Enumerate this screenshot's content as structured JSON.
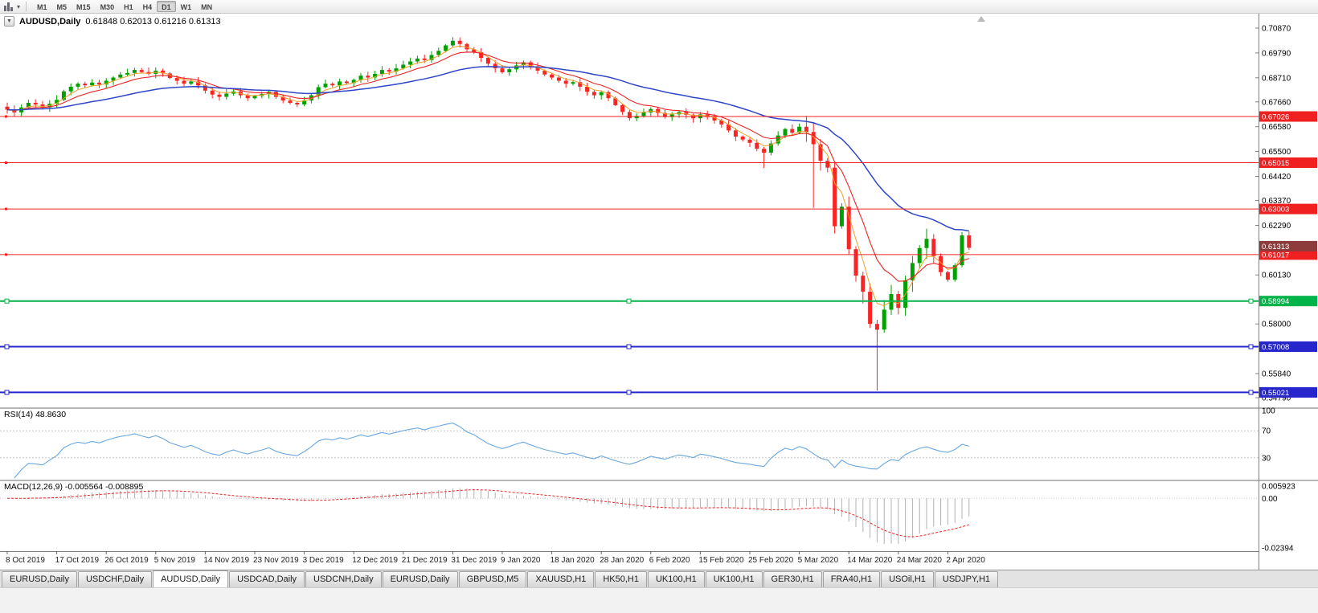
{
  "app": {
    "name": "MetaTrader chart window"
  },
  "toolbar": {
    "timeframes": [
      "M1",
      "M5",
      "M15",
      "M30",
      "H1",
      "H4",
      "D1",
      "W1",
      "MN"
    ],
    "active_timeframe": "D1"
  },
  "chart": {
    "title": "AUDUSD,Daily",
    "ohlc": "0.61848 0.62013 0.61216 0.61313"
  },
  "indicators": {
    "rsi_label": "RSI(14) 48.8630",
    "macd_label": "MACD(12,26,9) -0.005564 -0.008895"
  },
  "tabs": {
    "items": [
      "EURUSD,Daily",
      "USDCHF,Daily",
      "AUDUSD,Daily",
      "USDCAD,Daily",
      "USDCNH,Daily",
      "EURUSD,Daily",
      "GBPUSD,M5",
      "XAUUSD,H1",
      "HK50,H1",
      "UK100,H1",
      "UK100,H1",
      "GER30,H1",
      "FRA40,H1",
      "USOil,H1",
      "USDJPY,H1"
    ],
    "active_index": 2
  },
  "chart_data": {
    "type": "candlestick",
    "symbol": "AUDUSD",
    "timeframe": "Daily",
    "current_bar_ohlc": {
      "open": 0.61848,
      "high": 0.62013,
      "low": 0.61216,
      "close": 0.61313
    },
    "x_labels": [
      "8 Oct 2019",
      "17 Oct 2019",
      "26 Oct 2019",
      "5 Nov 2019",
      "14 Nov 2019",
      "23 Nov 2019",
      "3 Dec 2019",
      "12 Dec 2019",
      "21 Dec 2019",
      "31 Dec 2019",
      "9 Jan 2020",
      "18 Jan 2020",
      "28 Jan 2020",
      "6 Feb 2020",
      "15 Feb 2020",
      "25 Feb 2020",
      "5 Mar 2020",
      "14 Mar 2020",
      "24 Mar 2020",
      "2 Apr 2020"
    ],
    "label_every_n_candles": 7,
    "first_open": 0.6745,
    "closes": [
      0.6732,
      0.672,
      0.6742,
      0.6762,
      0.6755,
      0.6742,
      0.6758,
      0.6775,
      0.6812,
      0.6832,
      0.6845,
      0.6838,
      0.685,
      0.6842,
      0.6858,
      0.6872,
      0.6885,
      0.6892,
      0.6905,
      0.6896,
      0.6888,
      0.6902,
      0.689,
      0.687,
      0.6858,
      0.6845,
      0.6855,
      0.6838,
      0.6815,
      0.6798,
      0.6788,
      0.6802,
      0.6812,
      0.6795,
      0.6782,
      0.6792,
      0.68,
      0.681,
      0.6788,
      0.6772,
      0.6762,
      0.6755,
      0.6772,
      0.6795,
      0.683,
      0.6845,
      0.6838,
      0.6855,
      0.6848,
      0.6862,
      0.688,
      0.6872,
      0.6888,
      0.6905,
      0.6898,
      0.6912,
      0.6928,
      0.6942,
      0.6955,
      0.6948,
      0.697,
      0.6988,
      0.7012,
      0.7032,
      0.7018,
      0.6995,
      0.6982,
      0.6958,
      0.6932,
      0.6912,
      0.6895,
      0.6908,
      0.6925,
      0.6938,
      0.692,
      0.6902,
      0.6885,
      0.6872,
      0.6858,
      0.6845,
      0.6852,
      0.6832,
      0.681,
      0.6795,
      0.6808,
      0.6782,
      0.6752,
      0.6722,
      0.6695,
      0.6705,
      0.672,
      0.6735,
      0.6718,
      0.67,
      0.6712,
      0.6722,
      0.671,
      0.6695,
      0.6712,
      0.67,
      0.6685,
      0.6668,
      0.6642,
      0.6615,
      0.6602,
      0.6588,
      0.6562,
      0.6545,
      0.6585,
      0.662,
      0.6648,
      0.6632,
      0.6658,
      0.6635,
      0.6582,
      0.651,
      0.648,
      0.6225,
      0.631,
      0.6125,
      0.601,
      0.594,
      0.58,
      0.5775,
      0.5862,
      0.593,
      0.587,
      0.599,
      0.6065,
      0.613,
      0.617,
      0.6095,
      0.6025,
      0.5992,
      0.6055,
      0.6185,
      0.61313
    ],
    "wick_overrides": [
      {
        "i": 63,
        "h": 0.7048
      },
      {
        "i": 107,
        "l": 0.6478
      },
      {
        "i": 112,
        "h": 0.6672
      },
      {
        "i": 114,
        "l": 0.6305
      },
      {
        "i": 123,
        "l": 0.551
      },
      {
        "i": 130,
        "h": 0.6214
      },
      {
        "i": 136,
        "h": 0.62013,
        "l": 0.61216
      }
    ],
    "price_axis_ticks": [
      "0.70870",
      "0.69790",
      "0.68710",
      "0.67660",
      "0.66580",
      "0.65500",
      "0.64420",
      "0.63370",
      "0.62290",
      "0.60130",
      "0.58000",
      "0.55840",
      "0.54790"
    ],
    "price_range": {
      "max": 0.715,
      "min": 0.5437
    },
    "levels": [
      {
        "price": 0.67026,
        "label": "0.67026",
        "color_key": "level_red",
        "width": 1
      },
      {
        "price": 0.65015,
        "label": "0.65015",
        "color_key": "level_red",
        "width": 1
      },
      {
        "price": 0.63003,
        "label": "0.63003",
        "color_key": "level_red",
        "width": 1
      },
      {
        "price": 0.61017,
        "label": "0.61017",
        "color_key": "level_red",
        "width": 1
      },
      {
        "price": 0.58994,
        "label": "0.58994",
        "color_key": "level_green",
        "width": 2,
        "handles": true
      },
      {
        "price": 0.57008,
        "label": "0.57008",
        "color_key": "level_blue",
        "width": 2,
        "handles": true
      },
      {
        "price": 0.55021,
        "label": "0.55021",
        "color_key": "level_blue",
        "width": 2,
        "handles": true
      }
    ],
    "current_price_label": {
      "value": "0.61313",
      "color": "#8e3b3b"
    },
    "colors": {
      "up": "#00a000",
      "down": "#f92525",
      "ma_fast": "#f0a028",
      "ma_mid": "#ee2222",
      "ma_slow": "#2e46c8",
      "rsi": "#69a8e0",
      "macd_hist": "#b0b0b0",
      "macd_signal": "#ee2222",
      "level_red": "#f02020",
      "level_green": "#00b44a",
      "level_blue": "#2626cc"
    },
    "moving_averages": [
      {
        "period": 4,
        "color_key": "ma_fast",
        "width": 1
      },
      {
        "period": 9,
        "color_key": "ma_mid",
        "width": 1.1
      },
      {
        "period": 30,
        "color_key": "ma_slow",
        "width": 1.5
      }
    ],
    "rsi": {
      "period": 14,
      "current": 48.863,
      "levels": [
        70,
        30
      ],
      "axis_ticks": [
        "100",
        "70",
        "30"
      ]
    },
    "macd": {
      "fast": 12,
      "slow": 26,
      "signal": 9,
      "current": -0.005564,
      "current_signal": -0.008895,
      "max": 0.005923,
      "min": -0.02394,
      "axis_ticks": [
        "0.005923",
        "0.00",
        "-0.02394"
      ]
    }
  }
}
